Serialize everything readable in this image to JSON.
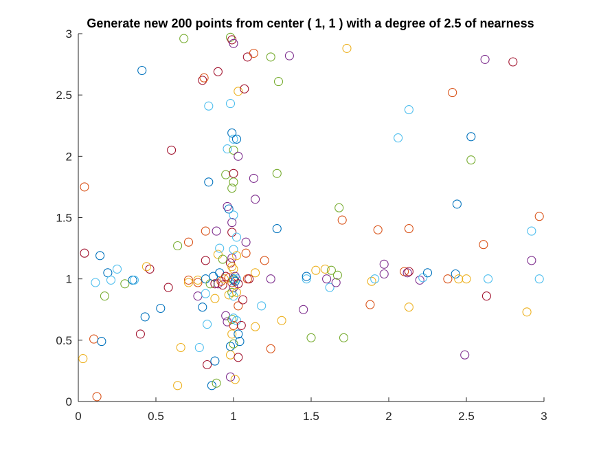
{
  "chart_data": {
    "type": "scatter",
    "title": "Generate new 200 points from center ( 1, 1 ) with a degree of 2.5 of nearness",
    "xlabel": "",
    "ylabel": "",
    "xlim": [
      0,
      3
    ],
    "ylim": [
      0,
      3
    ],
    "xticks": [
      "0",
      "0.5",
      "1",
      "1.5",
      "2",
      "2.5",
      "3"
    ],
    "yticks": [
      "0",
      "0.5",
      "1",
      "1.5",
      "2",
      "2.5",
      "3"
    ],
    "grid": false,
    "marker": "open-circle",
    "colors": {
      "blue": "#0072BD",
      "orange": "#D95319",
      "yellow": "#EDB120",
      "purple": "#7E2F8E",
      "green": "#77AC30",
      "cyan": "#4DBEEE",
      "red": "#A2142F"
    },
    "points": [
      [
        0.04,
        1.75,
        "orange"
      ],
      [
        0.04,
        1.21,
        "red"
      ],
      [
        0.03,
        0.35,
        "yellow"
      ],
      [
        0.1,
        0.51,
        "orange"
      ],
      [
        0.12,
        0.04,
        "orange"
      ],
      [
        0.14,
        1.19,
        "blue"
      ],
      [
        0.15,
        0.49,
        "blue"
      ],
      [
        0.11,
        0.97,
        "cyan"
      ],
      [
        0.17,
        0.86,
        "green"
      ],
      [
        0.19,
        1.05,
        "blue"
      ],
      [
        0.21,
        0.99,
        "cyan"
      ],
      [
        0.25,
        1.08,
        "cyan"
      ],
      [
        0.3,
        0.96,
        "green"
      ],
      [
        0.35,
        0.99,
        "blue"
      ],
      [
        0.36,
        0.99,
        "cyan"
      ],
      [
        0.4,
        0.55,
        "red"
      ],
      [
        0.41,
        2.7,
        "blue"
      ],
      [
        0.43,
        0.69,
        "blue"
      ],
      [
        0.44,
        1.1,
        "yellow"
      ],
      [
        0.46,
        1.08,
        "red"
      ],
      [
        0.53,
        0.76,
        "blue"
      ],
      [
        0.58,
        0.93,
        "red"
      ],
      [
        0.6,
        2.05,
        "red"
      ],
      [
        0.64,
        1.27,
        "green"
      ],
      [
        0.64,
        0.13,
        "yellow"
      ],
      [
        0.66,
        0.44,
        "yellow"
      ],
      [
        0.68,
        2.96,
        "green"
      ],
      [
        0.71,
        1.3,
        "orange"
      ],
      [
        0.71,
        0.99,
        "orange"
      ],
      [
        0.71,
        0.97,
        "yellow"
      ],
      [
        0.77,
        0.99,
        "yellow"
      ],
      [
        0.77,
        0.97,
        "orange"
      ],
      [
        0.77,
        0.86,
        "purple"
      ],
      [
        0.78,
        0.44,
        "cyan"
      ],
      [
        0.8,
        2.62,
        "red"
      ],
      [
        0.81,
        2.64,
        "orange"
      ],
      [
        0.8,
        0.77,
        "blue"
      ],
      [
        0.82,
        1.39,
        "orange"
      ],
      [
        0.82,
        1.15,
        "red"
      ],
      [
        0.82,
        1.0,
        "blue"
      ],
      [
        0.82,
        0.88,
        "cyan"
      ],
      [
        0.83,
        0.63,
        "cyan"
      ],
      [
        0.83,
        0.3,
        "red"
      ],
      [
        0.84,
        1.79,
        "blue"
      ],
      [
        0.84,
        2.41,
        "cyan"
      ],
      [
        0.85,
        0.96,
        "green"
      ],
      [
        0.86,
        0.13,
        "blue"
      ],
      [
        0.87,
        1.02,
        "blue"
      ],
      [
        0.88,
        0.96,
        "red"
      ],
      [
        0.88,
        0.84,
        "yellow"
      ],
      [
        0.88,
        0.33,
        "blue"
      ],
      [
        0.89,
        0.15,
        "green"
      ],
      [
        0.89,
        1.39,
        "purple"
      ],
      [
        0.9,
        2.69,
        "red"
      ],
      [
        0.9,
        1.2,
        "yellow"
      ],
      [
        0.9,
        0.96,
        "purple"
      ],
      [
        0.91,
        1.25,
        "cyan"
      ],
      [
        0.91,
        1.05,
        "blue"
      ],
      [
        0.92,
        0.98,
        "orange"
      ],
      [
        0.93,
        0.95,
        "red"
      ],
      [
        0.93,
        1.16,
        "green"
      ],
      [
        0.94,
        1.0,
        "yellow"
      ],
      [
        0.95,
        1.85,
        "green"
      ],
      [
        0.95,
        0.7,
        "purple"
      ],
      [
        0.95,
        1.02,
        "red"
      ],
      [
        0.96,
        2.06,
        "cyan"
      ],
      [
        0.96,
        1.59,
        "purple"
      ],
      [
        0.96,
        0.65,
        "purple"
      ],
      [
        0.97,
        1.57,
        "blue"
      ],
      [
        0.97,
        1.01,
        "orange"
      ],
      [
        0.97,
        0.87,
        "yellow"
      ],
      [
        0.98,
        2.43,
        "cyan"
      ],
      [
        0.98,
        1.13,
        "red"
      ],
      [
        0.98,
        0.45,
        "blue"
      ],
      [
        0.98,
        0.38,
        "yellow"
      ],
      [
        0.98,
        0.2,
        "purple"
      ],
      [
        0.98,
        2.97,
        "green"
      ],
      [
        0.99,
        2.95,
        "red"
      ],
      [
        0.99,
        2.19,
        "blue"
      ],
      [
        0.99,
        1.38,
        "red"
      ],
      [
        0.99,
        1.46,
        "purple"
      ],
      [
        0.99,
        1.74,
        "green"
      ],
      [
        0.99,
        1.17,
        "purple"
      ],
      [
        0.99,
        1.1,
        "yellow"
      ],
      [
        0.99,
        0.97,
        "orange"
      ],
      [
        0.99,
        0.89,
        "green"
      ],
      [
        0.99,
        0.67,
        "green"
      ],
      [
        0.99,
        0.55,
        "yellow"
      ],
      [
        1.0,
        2.92,
        "purple"
      ],
      [
        1.0,
        2.14,
        "cyan"
      ],
      [
        1.0,
        2.05,
        "green"
      ],
      [
        1.0,
        1.86,
        "red"
      ],
      [
        1.0,
        1.79,
        "green"
      ],
      [
        1.0,
        1.52,
        "cyan"
      ],
      [
        1.0,
        1.24,
        "cyan"
      ],
      [
        1.0,
        1.08,
        "yellow"
      ],
      [
        1.0,
        1.0,
        "blue"
      ],
      [
        1.0,
        0.99,
        "green"
      ],
      [
        1.0,
        0.93,
        "purple"
      ],
      [
        1.0,
        0.86,
        "cyan"
      ],
      [
        1.0,
        0.68,
        "cyan"
      ],
      [
        1.0,
        0.62,
        "orange"
      ],
      [
        1.0,
        0.47,
        "green"
      ],
      [
        1.01,
        1.02,
        "purple"
      ],
      [
        1.01,
        0.98,
        "blue"
      ],
      [
        1.01,
        0.18,
        "yellow"
      ],
      [
        1.02,
        2.14,
        "blue"
      ],
      [
        1.02,
        1.34,
        "cyan"
      ],
      [
        1.02,
        1.19,
        "yellow"
      ],
      [
        1.02,
        1.0,
        "cyan"
      ],
      [
        1.02,
        0.89,
        "yellow"
      ],
      [
        1.02,
        0.66,
        "cyan"
      ],
      [
        1.03,
        2.53,
        "yellow"
      ],
      [
        1.03,
        2.0,
        "purple"
      ],
      [
        1.03,
        0.96,
        "red"
      ],
      [
        1.03,
        0.78,
        "orange"
      ],
      [
        1.03,
        0.55,
        "blue"
      ],
      [
        1.03,
        0.36,
        "red"
      ],
      [
        1.04,
        0.49,
        "blue"
      ],
      [
        1.05,
        0.62,
        "red"
      ],
      [
        1.06,
        0.83,
        "red"
      ],
      [
        1.07,
        2.55,
        "red"
      ],
      [
        1.08,
        1.3,
        "purple"
      ],
      [
        1.08,
        1.21,
        "orange"
      ],
      [
        1.09,
        2.81,
        "red"
      ],
      [
        1.09,
        1.0,
        "orange"
      ],
      [
        1.1,
        1.0,
        "red"
      ],
      [
        1.13,
        2.84,
        "orange"
      ],
      [
        1.13,
        1.82,
        "purple"
      ],
      [
        1.14,
        1.65,
        "purple"
      ],
      [
        1.14,
        1.05,
        "yellow"
      ],
      [
        1.14,
        0.61,
        "yellow"
      ],
      [
        1.18,
        0.78,
        "cyan"
      ],
      [
        1.2,
        1.15,
        "orange"
      ],
      [
        1.24,
        2.81,
        "green"
      ],
      [
        1.24,
        1.0,
        "purple"
      ],
      [
        1.24,
        0.43,
        "orange"
      ],
      [
        1.28,
        1.86,
        "green"
      ],
      [
        1.28,
        1.41,
        "blue"
      ],
      [
        1.29,
        2.61,
        "green"
      ],
      [
        1.31,
        0.66,
        "yellow"
      ],
      [
        1.36,
        2.82,
        "purple"
      ],
      [
        1.45,
        0.75,
        "purple"
      ],
      [
        1.47,
        1.0,
        "cyan"
      ],
      [
        1.47,
        1.02,
        "blue"
      ],
      [
        1.5,
        0.52,
        "green"
      ],
      [
        1.53,
        1.07,
        "yellow"
      ],
      [
        1.59,
        1.08,
        "yellow"
      ],
      [
        1.6,
        1.0,
        "purple"
      ],
      [
        1.62,
        0.93,
        "cyan"
      ],
      [
        1.63,
        1.07,
        "green"
      ],
      [
        1.66,
        0.97,
        "purple"
      ],
      [
        1.67,
        1.03,
        "green"
      ],
      [
        1.68,
        1.58,
        "green"
      ],
      [
        1.7,
        1.48,
        "orange"
      ],
      [
        1.71,
        0.52,
        "green"
      ],
      [
        1.73,
        2.88,
        "yellow"
      ],
      [
        1.88,
        0.79,
        "orange"
      ],
      [
        1.89,
        0.98,
        "yellow"
      ],
      [
        1.91,
        1.0,
        "cyan"
      ],
      [
        1.93,
        1.4,
        "orange"
      ],
      [
        1.97,
        1.12,
        "purple"
      ],
      [
        1.97,
        1.04,
        "purple"
      ],
      [
        2.06,
        2.15,
        "cyan"
      ],
      [
        2.1,
        1.06,
        "orange"
      ],
      [
        2.12,
        1.05,
        "purple"
      ],
      [
        2.13,
        2.38,
        "cyan"
      ],
      [
        2.13,
        1.41,
        "orange"
      ],
      [
        2.13,
        0.77,
        "yellow"
      ],
      [
        2.13,
        1.06,
        "red"
      ],
      [
        2.2,
        0.99,
        "purple"
      ],
      [
        2.22,
        1.01,
        "cyan"
      ],
      [
        2.25,
        1.05,
        "blue"
      ],
      [
        2.38,
        1.0,
        "orange"
      ],
      [
        2.41,
        2.52,
        "orange"
      ],
      [
        2.43,
        1.04,
        "blue"
      ],
      [
        2.44,
        1.61,
        "blue"
      ],
      [
        2.45,
        1.0,
        "yellow"
      ],
      [
        2.49,
        0.38,
        "purple"
      ],
      [
        2.5,
        1.0,
        "yellow"
      ],
      [
        2.53,
        2.16,
        "blue"
      ],
      [
        2.53,
        1.97,
        "green"
      ],
      [
        2.61,
        1.28,
        "orange"
      ],
      [
        2.62,
        2.79,
        "purple"
      ],
      [
        2.63,
        0.86,
        "red"
      ],
      [
        2.64,
        1.0,
        "cyan"
      ],
      [
        2.8,
        2.77,
        "red"
      ],
      [
        2.89,
        0.73,
        "yellow"
      ],
      [
        2.92,
        1.39,
        "cyan"
      ],
      [
        2.92,
        1.15,
        "purple"
      ],
      [
        2.97,
        1.51,
        "orange"
      ],
      [
        2.97,
        1.0,
        "cyan"
      ]
    ]
  }
}
